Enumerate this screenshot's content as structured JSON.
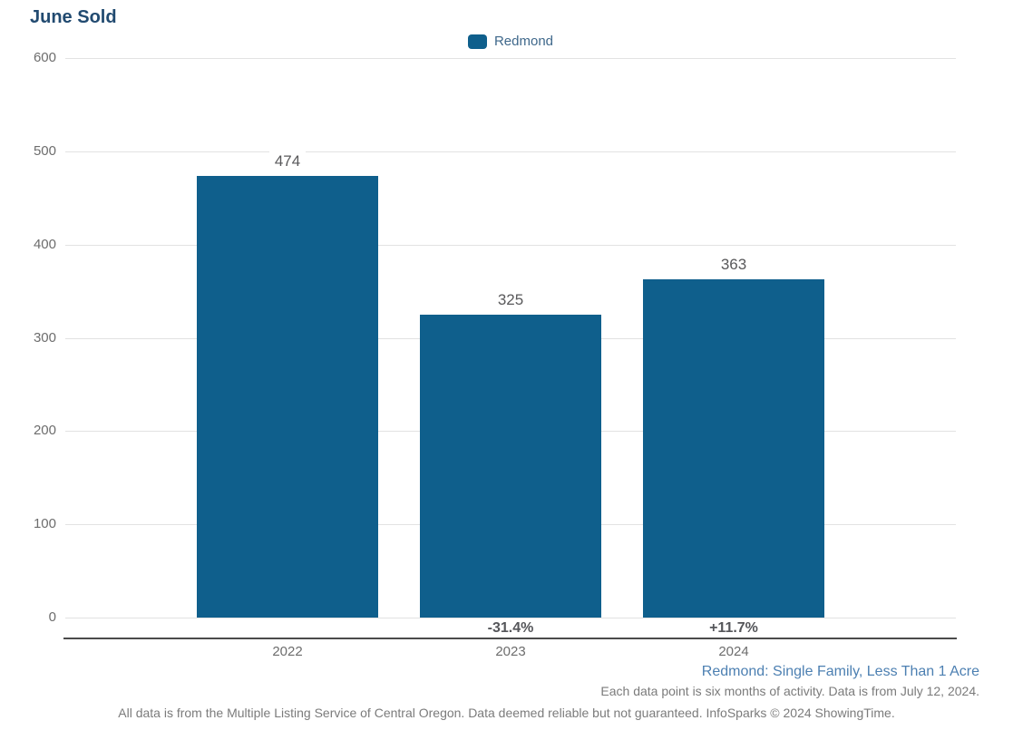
{
  "title": "June Sold",
  "legend": {
    "label": "Redmond"
  },
  "chart_data": {
    "type": "bar",
    "title": "June Sold",
    "series_name": "Redmond",
    "categories": [
      "2022",
      "2023",
      "2024"
    ],
    "values": [
      474,
      325,
      363
    ],
    "pct_change_labels": [
      "",
      "-31.4%",
      "+11.7%"
    ],
    "xlabel": "",
    "ylabel": "",
    "ylim": [
      0,
      600
    ],
    "yticks": [
      0,
      100,
      200,
      300,
      400,
      500,
      600
    ],
    "grid": true,
    "legend_position": "top-center",
    "bar_color": "#0f5f8c"
  },
  "footer": {
    "subtitle": "Redmond: Single Family, Less Than 1 Acre",
    "note": "Each data point is six months of activity. Data is from July 12, 2024.",
    "disclaimer": "All data is from the Multiple Listing Service of Central Oregon. Data deemed reliable but not guaranteed. InfoSparks © 2024 ShowingTime."
  },
  "colors": {
    "bar": "#0f5f8c",
    "title_text": "#214a70",
    "legend_text": "#3f688b",
    "subtitle_blue": "#4d80b2",
    "gray_text": "#7b7b7b",
    "gridline": "#e2e2e2",
    "axis_line": "#4a4a4a"
  }
}
